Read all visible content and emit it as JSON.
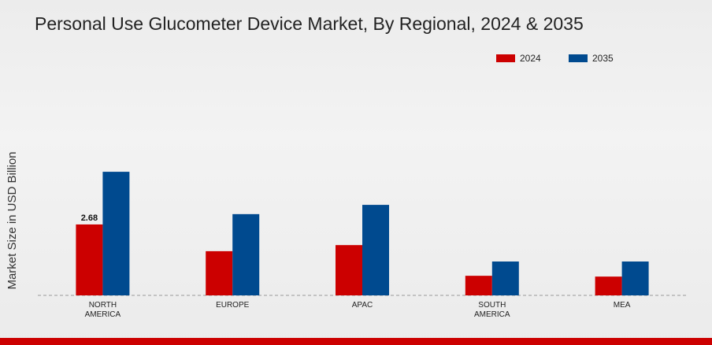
{
  "chart_data": {
    "type": "bar",
    "title": "Personal Use Glucometer Device Market, By Regional, 2024 & 2035",
    "y_label": "Market Size in USD Billion",
    "categories": [
      "NORTH AMERICA",
      "EUROPE",
      "APAC",
      "SOUTH AMERICA",
      "MEA"
    ],
    "series": [
      {
        "name": "2024",
        "color": "#cc0000",
        "values": [
          2.68,
          1.67,
          1.9,
          0.74,
          0.71
        ]
      },
      {
        "name": "2035",
        "color": "#004a8f",
        "values": [
          4.67,
          3.07,
          3.42,
          1.28,
          1.28
        ]
      }
    ],
    "ylim": [
      0,
      5
    ],
    "legend": "top-right"
  }
}
